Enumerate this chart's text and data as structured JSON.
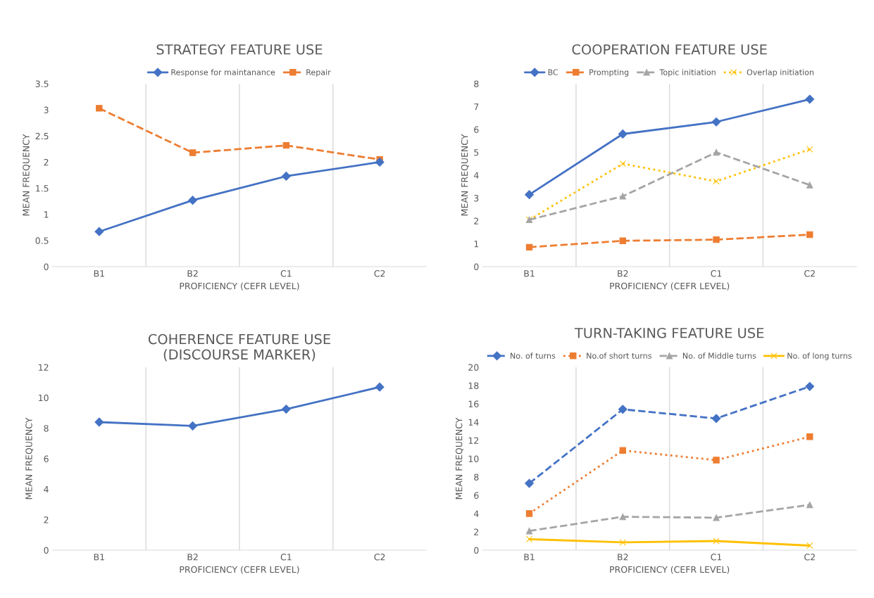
{
  "chart_data": [
    {
      "type": "line",
      "title": "STRATEGY FEATURE USE",
      "xlabel": "PROFICIENCY (CEFR LEVEL)",
      "ylabel": "MEAN FREQUENCY",
      "categories": [
        "B1",
        "B2",
        "C1",
        "C2"
      ],
      "ylim": [
        0,
        3.5
      ],
      "yticks": [
        0,
        0.5,
        1,
        1.5,
        2,
        2.5,
        3,
        3.5
      ],
      "grid": "x",
      "legend": "top",
      "series": [
        {
          "name": "Response for maintanance",
          "color": "#4472c4",
          "values": [
            0.67,
            1.27,
            1.73,
            2.0
          ],
          "marker": "diamond",
          "line_style": "solid"
        },
        {
          "name": "Repair",
          "color": "#ed7d31",
          "values": [
            3.03,
            2.18,
            2.32,
            2.05
          ],
          "marker": "square",
          "line_style": "dashed"
        }
      ]
    },
    {
      "type": "line",
      "title": "COOPERATION FEATURE USE",
      "xlabel": "PROFICIENCY (CEFR LEVEL)",
      "ylabel": "MEAN FREQUENCY",
      "categories": [
        "B1",
        "B2",
        "C1",
        "C2"
      ],
      "ylim": [
        0,
        8
      ],
      "yticks": [
        0,
        1,
        2,
        3,
        4,
        5,
        6,
        7,
        8
      ],
      "grid": "x",
      "legend": "top",
      "series": [
        {
          "name": "BC",
          "color": "#4472c4",
          "values": [
            3.15,
            5.8,
            6.33,
            7.32
          ],
          "marker": "diamond",
          "line_style": "solid"
        },
        {
          "name": "Prompting",
          "color": "#ed7d31",
          "values": [
            0.85,
            1.13,
            1.18,
            1.4
          ],
          "marker": "square",
          "line_style": "dashed"
        },
        {
          "name": "Topic initiation",
          "color": "#a5a5a5",
          "values": [
            2.05,
            3.08,
            5.0,
            3.57
          ],
          "marker": "triangle",
          "line_style": "dashed"
        },
        {
          "name": "Overlap initiation",
          "color": "#ffc000",
          "values": [
            2.05,
            4.5,
            3.73,
            5.13
          ],
          "marker": "cross",
          "line_style": "dotted"
        }
      ]
    },
    {
      "type": "line",
      "title": "COHERENCE FEATURE USE\n(DISCOURSE MARKER)",
      "xlabel": "PROFICIENCY (CEFR LEVEL)",
      "ylabel": "MEAN FREQUENCY",
      "categories": [
        "B1",
        "B2",
        "C1",
        "C2"
      ],
      "ylim": [
        0,
        12
      ],
      "yticks": [
        0,
        2,
        4,
        6,
        8,
        10,
        12
      ],
      "grid": "x",
      "series": [
        {
          "color": "#4472c4",
          "values": [
            8.4,
            8.15,
            9.25,
            10.7
          ],
          "marker": "diamond",
          "line_style": "solid"
        }
      ]
    },
    {
      "type": "line",
      "title": "TURN-TAKING FEATURE USE",
      "xlabel": "PROFICIENCY (CEFR LEVEL)",
      "ylabel": "MEAN FREQUENCY",
      "categories": [
        "B1",
        "B2",
        "C1",
        "C2"
      ],
      "ylim": [
        0,
        20
      ],
      "yticks": [
        0,
        2,
        4,
        6,
        8,
        10,
        12,
        14,
        16,
        18,
        20
      ],
      "grid": "x",
      "legend": "top",
      "series": [
        {
          "name": "No. of turns",
          "color": "#4472c4",
          "values": [
            7.3,
            15.4,
            14.4,
            17.9
          ],
          "marker": "diamond",
          "line_style": "dashed"
        },
        {
          "name": "No.of short turns",
          "color": "#ed7d31",
          "values": [
            4.0,
            10.9,
            9.85,
            12.4
          ],
          "marker": "square",
          "line_style": "dotted"
        },
        {
          "name": "No. of Middle turns",
          "color": "#a5a5a5",
          "values": [
            2.1,
            3.65,
            3.55,
            4.95
          ],
          "marker": "triangle",
          "line_style": "dashed"
        },
        {
          "name": "No. of long turns",
          "color": "#ffc000",
          "values": [
            1.2,
            0.85,
            1.0,
            0.5
          ],
          "marker": "cross",
          "line_style": "solid"
        }
      ]
    }
  ]
}
